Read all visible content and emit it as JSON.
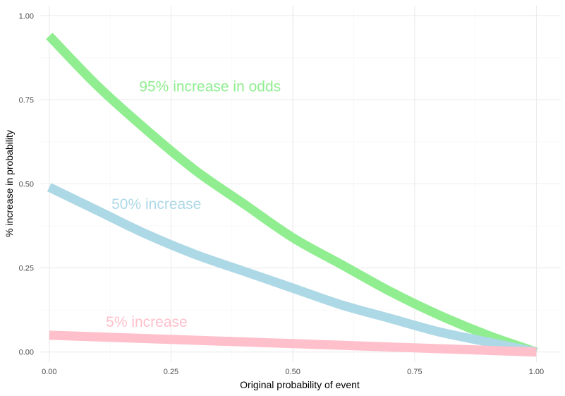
{
  "chart_data": {
    "type": "line",
    "title": "",
    "xlabel": "Original probability of event",
    "ylabel": "% increase in probability",
    "xlim": [
      -0.02,
      1.05
    ],
    "ylim": [
      -0.03,
      1.03
    ],
    "grid": true,
    "legend": "none",
    "x_ticks": [
      {
        "value": 0.0,
        "label": "0.00"
      },
      {
        "value": 0.25,
        "label": "0.25"
      },
      {
        "value": 0.5,
        "label": "0.50"
      },
      {
        "value": 0.75,
        "label": "0.75"
      },
      {
        "value": 1.0,
        "label": "1.00"
      }
    ],
    "y_ticks": [
      {
        "value": 0.0,
        "label": "0.00"
      },
      {
        "value": 0.25,
        "label": "0.25"
      },
      {
        "value": 0.5,
        "label": "0.50"
      },
      {
        "value": 0.75,
        "label": "0.75"
      },
      {
        "value": 1.0,
        "label": "1.00"
      }
    ],
    "x": [
      0.0,
      0.1,
      0.2,
      0.3,
      0.4,
      0.5,
      0.6,
      0.7,
      0.8,
      0.9,
      1.0
    ],
    "series": [
      {
        "key": "odds95",
        "color": "#90ee90",
        "values": [
          0.94,
          0.79,
          0.66,
          0.54,
          0.44,
          0.34,
          0.26,
          0.18,
          0.11,
          0.05,
          0.0
        ]
      },
      {
        "key": "inc50",
        "color": "#add8e6",
        "values": [
          0.49,
          0.42,
          0.35,
          0.29,
          0.24,
          0.19,
          0.14,
          0.1,
          0.06,
          0.03,
          0.0
        ]
      },
      {
        "key": "inc5",
        "color": "#ffc0cb",
        "values": [
          0.05,
          0.045,
          0.04,
          0.035,
          0.03,
          0.025,
          0.02,
          0.015,
          0.01,
          0.005,
          0.0
        ]
      }
    ],
    "annotations": [
      {
        "text": "95% increase in odds",
        "x": 0.33,
        "y": 0.79,
        "color": "#90ee90"
      },
      {
        "text": "50% increase",
        "x": 0.22,
        "y": 0.44,
        "color": "#add8e6"
      },
      {
        "text": "5% increase",
        "x": 0.2,
        "y": 0.09,
        "color": "#ffc0cb"
      }
    ]
  }
}
